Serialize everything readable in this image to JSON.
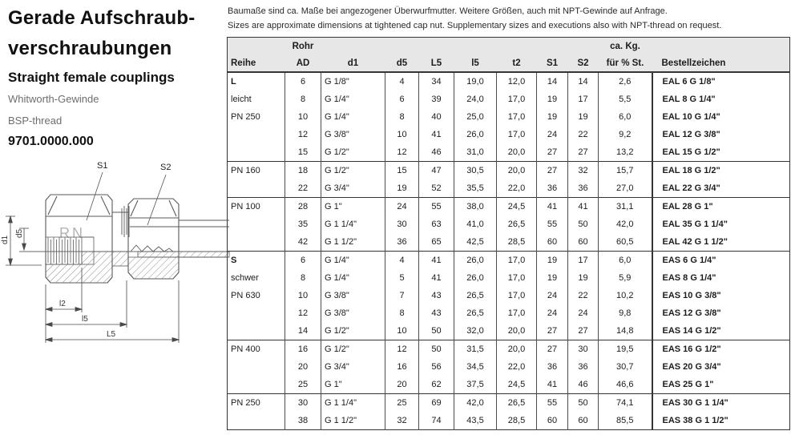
{
  "page": {
    "title_line1": "Gerade Aufschraub-",
    "title_line2": "verschraubungen",
    "subtitle": "Straight female couplings",
    "thread_de": "Whitworth-Gewinde",
    "thread_en": "BSP-thread",
    "part_number": "9701.0000.000"
  },
  "notes": {
    "de": "Baumaße sind ca. Maße bei angezogener Überwurfmutter.  Weitere Größen, auch mit NPT-Gewinde auf Anfrage.",
    "en": "Sizes are approximate dimensions at tightened cap nut. Supplementary sizes and executions also with NPT-thread on request."
  },
  "drawing": {
    "labels": {
      "s1": "S1",
      "s2": "S2",
      "rn": "RN",
      "d1": "d1",
      "d5": "d5",
      "l2": "l2",
      "l5": "l5",
      "L5": "L5"
    }
  },
  "colors": {
    "header_bg": "#e7e7e7",
    "table_border": "#353535",
    "cell_border": "#4d4d4d",
    "text": "#1c1c1c",
    "muted_text": "#6e6e6e",
    "drawing_line": "#5a5a5a"
  },
  "table": {
    "header": {
      "rohr": "Rohr",
      "ca_kg": "ca. Kg.",
      "cols": [
        "Reihe",
        "AD",
        "d1",
        "d5",
        "L5",
        "l5",
        "t2",
        "S1",
        "S2",
        "für % St.",
        "Bestellzeichen"
      ]
    },
    "sections": [
      {
        "reihe_lines": [
          "L",
          "leicht",
          "PN 250"
        ],
        "reihe_bold_first": true,
        "rows": [
          [
            "6",
            "G 1/8\"",
            "4",
            "34",
            "19,0",
            "12,0",
            "14",
            "14",
            "2,6",
            "EAL 6 G 1/8\""
          ],
          [
            "8",
            "G 1/4\"",
            "6",
            "39",
            "24,0",
            "17,0",
            "19",
            "17",
            "5,5",
            "EAL 8 G 1/4\""
          ],
          [
            "10",
            "G 1/4\"",
            "8",
            "40",
            "25,0",
            "17,0",
            "19",
            "19",
            "6,0",
            "EAL 10 G 1/4\""
          ],
          [
            "12",
            "G 3/8\"",
            "10",
            "41",
            "26,0",
            "17,0",
            "24",
            "22",
            "9,2",
            "EAL 12 G 3/8\""
          ],
          [
            "15",
            "G 1/2\"",
            "12",
            "46",
            "31,0",
            "20,0",
            "27",
            "27",
            "13,2",
            "EAL 15 G 1/2\""
          ]
        ]
      },
      {
        "reihe_lines": [
          "PN 160"
        ],
        "reihe_bold_first": false,
        "rows": [
          [
            "18",
            "G 1/2\"",
            "15",
            "47",
            "30,5",
            "20,0",
            "27",
            "32",
            "15,7",
            "EAL 18 G 1/2\""
          ],
          [
            "22",
            "G 3/4\"",
            "19",
            "52",
            "35,5",
            "22,0",
            "36",
            "36",
            "27,0",
            "EAL 22 G 3/4\""
          ]
        ]
      },
      {
        "reihe_lines": [
          "PN 100"
        ],
        "reihe_bold_first": false,
        "rows": [
          [
            "28",
            "G 1\"",
            "24",
            "55",
            "38,0",
            "24,5",
            "41",
            "41",
            "31,1",
            "EAL 28 G 1\""
          ],
          [
            "35",
            "G 1 1/4\"",
            "30",
            "63",
            "41,0",
            "26,5",
            "55",
            "50",
            "42,0",
            "EAL 35 G 1 1/4\""
          ],
          [
            "42",
            "G 1 1/2\"",
            "36",
            "65",
            "42,5",
            "28,5",
            "60",
            "60",
            "60,5",
            "EAL 42 G 1 1/2\""
          ]
        ]
      },
      {
        "reihe_lines": [
          "S",
          "schwer",
          "PN 630"
        ],
        "reihe_bold_first": true,
        "rows": [
          [
            "6",
            "G 1/4\"",
            "4",
            "41",
            "26,0",
            "17,0",
            "19",
            "17",
            "6,0",
            "EAS 6 G 1/4\""
          ],
          [
            "8",
            "G 1/4\"",
            "5",
            "41",
            "26,0",
            "17,0",
            "19",
            "19",
            "5,9",
            "EAS 8 G 1/4\""
          ],
          [
            "10",
            "G 3/8\"",
            "7",
            "43",
            "26,5",
            "17,0",
            "24",
            "22",
            "10,2",
            "EAS 10 G 3/8\""
          ],
          [
            "12",
            "G 3/8\"",
            "8",
            "43",
            "26,5",
            "17,0",
            "24",
            "24",
            "9,8",
            "EAS 12 G 3/8\""
          ],
          [
            "14",
            "G 1/2\"",
            "10",
            "50",
            "32,0",
            "20,0",
            "27",
            "27",
            "14,8",
            "EAS 14 G 1/2\""
          ]
        ]
      },
      {
        "reihe_lines": [
          "PN 400"
        ],
        "reihe_bold_first": false,
        "rows": [
          [
            "16",
            "G 1/2\"",
            "12",
            "50",
            "31,5",
            "20,0",
            "27",
            "30",
            "19,5",
            "EAS 16 G 1/2\""
          ],
          [
            "20",
            "G 3/4\"",
            "16",
            "56",
            "34,5",
            "22,0",
            "36",
            "36",
            "30,7",
            "EAS 20 G 3/4\""
          ],
          [
            "25",
            "G 1\"",
            "20",
            "62",
            "37,5",
            "24,5",
            "41",
            "46",
            "46,6",
            "EAS 25 G 1\""
          ]
        ]
      },
      {
        "reihe_lines": [
          "PN 250"
        ],
        "reihe_bold_first": false,
        "rows": [
          [
            "30",
            "G 1 1/4\"",
            "25",
            "69",
            "42,0",
            "26,5",
            "55",
            "50",
            "74,1",
            "EAS 30 G 1 1/4\""
          ],
          [
            "38",
            "G 1 1/2\"",
            "32",
            "74",
            "43,5",
            "28,5",
            "60",
            "60",
            "85,5",
            "EAS 38 G 1 1/2\""
          ]
        ]
      }
    ]
  }
}
